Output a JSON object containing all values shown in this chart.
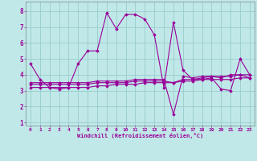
{
  "xlabel": "Windchill (Refroidissement éolien,°C)",
  "x_ticks": [
    0,
    1,
    2,
    3,
    4,
    5,
    6,
    7,
    8,
    9,
    10,
    11,
    12,
    13,
    14,
    15,
    16,
    17,
    18,
    19,
    20,
    21,
    22,
    23
  ],
  "ylim": [
    0.8,
    8.6
  ],
  "xlim": [
    -0.5,
    23.5
  ],
  "yticks": [
    1,
    2,
    3,
    4,
    5,
    6,
    7,
    8
  ],
  "background_color": "#c0e8e8",
  "line_color": "#990099",
  "grid_color": "#99cccc",
  "line1_x": [
    0,
    1,
    2,
    3,
    4,
    5,
    6,
    7,
    8,
    9,
    10,
    11,
    12,
    13,
    14,
    15,
    16,
    17,
    18,
    19,
    20,
    21,
    22,
    23
  ],
  "line1_y": [
    4.7,
    3.7,
    3.2,
    3.1,
    3.2,
    4.7,
    5.5,
    5.5,
    7.9,
    6.9,
    7.8,
    7.8,
    7.5,
    6.5,
    3.2,
    7.3,
    4.3,
    3.7,
    3.7,
    3.8,
    3.1,
    3.0,
    5.0,
    4.0
  ],
  "line2_x": [
    0,
    1,
    2,
    3,
    4,
    5,
    6,
    7,
    8,
    9,
    10,
    11,
    12,
    13,
    14,
    15,
    16,
    17,
    18,
    19,
    20,
    21,
    22,
    23
  ],
  "line2_y": [
    3.2,
    3.2,
    3.2,
    3.2,
    3.2,
    3.2,
    3.2,
    3.3,
    3.3,
    3.4,
    3.4,
    3.4,
    3.5,
    3.5,
    3.5,
    3.5,
    3.6,
    3.6,
    3.7,
    3.7,
    3.7,
    3.7,
    3.8,
    3.8
  ],
  "line3_x": [
    0,
    1,
    2,
    3,
    4,
    5,
    6,
    7,
    8,
    9,
    10,
    11,
    12,
    13,
    14,
    15,
    16,
    17,
    18,
    19,
    20,
    21,
    22,
    23
  ],
  "line3_y": [
    3.4,
    3.4,
    3.4,
    3.4,
    3.4,
    3.4,
    3.4,
    3.5,
    3.5,
    3.5,
    3.5,
    3.6,
    3.6,
    3.6,
    3.6,
    3.5,
    3.7,
    3.7,
    3.8,
    3.9,
    3.9,
    3.9,
    4.0,
    4.0
  ],
  "line4_x": [
    0,
    1,
    2,
    3,
    4,
    5,
    6,
    7,
    8,
    9,
    10,
    11,
    12,
    13,
    14,
    15,
    16,
    17,
    18,
    19,
    20,
    21,
    22,
    23
  ],
  "line4_y": [
    3.5,
    3.5,
    3.5,
    3.5,
    3.5,
    3.5,
    3.5,
    3.6,
    3.6,
    3.6,
    3.6,
    3.7,
    3.7,
    3.7,
    3.7,
    1.5,
    3.9,
    3.8,
    3.9,
    3.9,
    3.8,
    4.0,
    4.0,
    3.8
  ]
}
